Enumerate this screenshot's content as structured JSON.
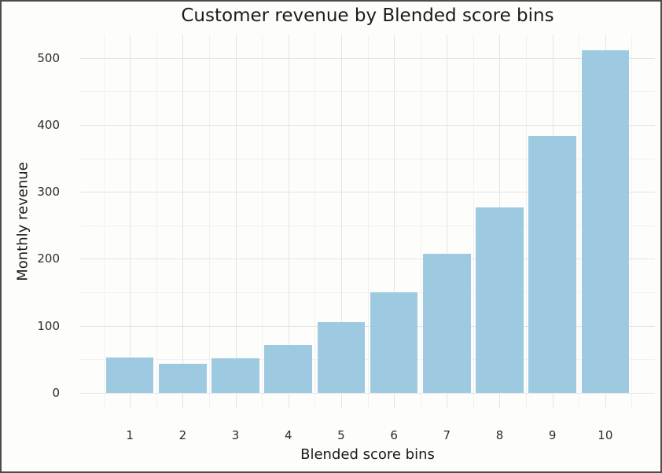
{
  "figure": {
    "background_color": "#fdfdfb",
    "border_color": "#4d4d4d"
  },
  "chart_data": {
    "type": "bar",
    "title": "Customer revenue by Blended score bins",
    "xlabel": "Blended score bins",
    "ylabel": "Monthly revenue",
    "categories": [
      "1",
      "2",
      "3",
      "4",
      "5",
      "6",
      "7",
      "8",
      "9",
      "10"
    ],
    "values": [
      53,
      43,
      52,
      72,
      106,
      150,
      208,
      277,
      383,
      511
    ],
    "bar_color": "#9ecae1",
    "bar_rel_width": 0.9,
    "yticks": [
      0,
      100,
      200,
      300,
      400,
      500
    ],
    "y_minor_gridlines": [
      50,
      150,
      250,
      350,
      450
    ],
    "x_minor_gridlines": [
      0.5,
      1.5,
      2.5,
      3.5,
      4.5,
      5.5,
      6.5,
      7.5,
      8.5,
      9.5,
      10.5
    ],
    "ylim": [
      -23.5,
      534.8
    ],
    "xlim": [
      0.06,
      10.94
    ],
    "grid": {
      "major_color": "#e4e4e2",
      "minor_color": "#f1f1ef",
      "visible": true
    },
    "legend": null,
    "tick_label_color": "#2b2b2b",
    "text_color": "#1a1a1a"
  }
}
